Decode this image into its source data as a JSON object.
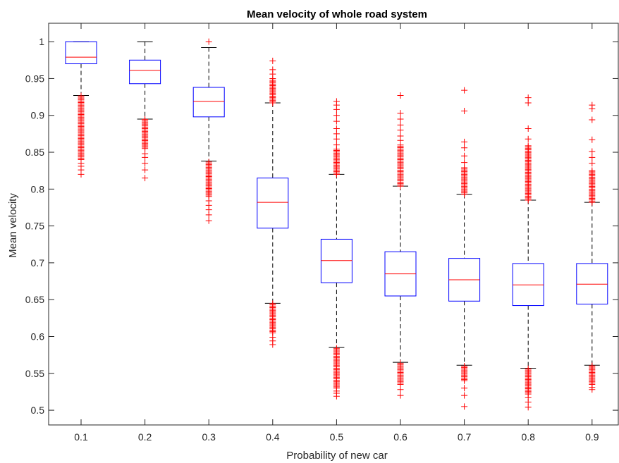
{
  "chart_data": {
    "type": "box",
    "title": "Mean velocity of whole road system",
    "xlabel": "Probability of new car",
    "ylabel": "Mean velocity",
    "categories": [
      "0.1",
      "0.2",
      "0.3",
      "0.4",
      "0.5",
      "0.6",
      "0.7",
      "0.8",
      "0.9"
    ],
    "ylim": [
      0.48,
      1.025
    ],
    "yticks": [
      "0.5",
      "0.55",
      "0.6",
      "0.65",
      "0.7",
      "0.75",
      "0.8",
      "0.85",
      "0.9",
      "0.95",
      "1"
    ],
    "grid": false,
    "boxes": [
      {
        "category": "0.1",
        "whisker_low": 0.927,
        "q1": 0.97,
        "median": 0.979,
        "q3": 1.0,
        "whisker_high": 1.0,
        "outliers": {
          "low_from": 0.84,
          "low_to": 0.927,
          "sparse_low": [
            0.82,
            0.826,
            0.831,
            0.835
          ]
        }
      },
      {
        "category": "0.2",
        "whisker_low": 0.895,
        "q1": 0.943,
        "median": 0.961,
        "q3": 0.975,
        "whisker_high": 1.0,
        "outliers": {
          "low_from": 0.855,
          "low_to": 0.895,
          "sparse_low": [
            0.815,
            0.826,
            0.835,
            0.843,
            0.848
          ]
        }
      },
      {
        "category": "0.3",
        "whisker_low": 0.838,
        "q1": 0.898,
        "median": 0.919,
        "q3": 0.938,
        "whisker_high": 0.992,
        "outliers": {
          "high": [
            1.0
          ],
          "low_from": 0.79,
          "low_to": 0.838,
          "sparse_low": [
            0.757,
            0.765,
            0.772,
            0.778,
            0.784
          ]
        }
      },
      {
        "category": "0.4",
        "whisker_low": 0.645,
        "q1": 0.747,
        "median": 0.782,
        "q3": 0.815,
        "whisker_high": 0.917,
        "outliers": {
          "high_from": 0.917,
          "high_to": 0.948,
          "sparse_high": [
            0.95,
            0.956,
            0.962,
            0.974
          ],
          "low_from": 0.605,
          "low_to": 0.645,
          "sparse_low": [
            0.589,
            0.594,
            0.599
          ]
        }
      },
      {
        "category": "0.5",
        "whisker_low": 0.585,
        "q1": 0.673,
        "median": 0.703,
        "q3": 0.732,
        "whisker_high": 0.82,
        "outliers": {
          "high_from": 0.82,
          "high_to": 0.855,
          "sparse_high": [
            0.86,
            0.868,
            0.875,
            0.882,
            0.892,
            0.9,
            0.908,
            0.914,
            0.919
          ],
          "low_from": 0.53,
          "low_to": 0.585,
          "sparse_low": [
            0.519,
            0.523,
            0.526
          ]
        }
      },
      {
        "category": "0.6",
        "whisker_low": 0.565,
        "q1": 0.655,
        "median": 0.685,
        "q3": 0.715,
        "whisker_high": 0.804,
        "outliers": {
          "high_from": 0.804,
          "high_to": 0.86,
          "sparse_high": [
            0.866,
            0.872,
            0.88,
            0.887,
            0.895,
            0.903,
            0.927
          ],
          "low_from": 0.535,
          "low_to": 0.565,
          "sparse_low": [
            0.52,
            0.528
          ]
        }
      },
      {
        "category": "0.7",
        "whisker_low": 0.561,
        "q1": 0.648,
        "median": 0.677,
        "q3": 0.706,
        "whisker_high": 0.793,
        "outliers": {
          "high_from": 0.793,
          "high_to": 0.83,
          "sparse_high": [
            0.836,
            0.845,
            0.856,
            0.864,
            0.906,
            0.934
          ],
          "low_from": 0.54,
          "low_to": 0.561,
          "sparse_low": [
            0.505,
            0.52,
            0.53
          ]
        }
      },
      {
        "category": "0.8",
        "whisker_low": 0.557,
        "q1": 0.642,
        "median": 0.67,
        "q3": 0.699,
        "whisker_high": 0.785,
        "outliers": {
          "high_from": 0.785,
          "high_to": 0.86,
          "sparse_high": [
            0.868,
            0.882,
            0.917,
            0.924
          ],
          "low_from": 0.522,
          "low_to": 0.557,
          "sparse_low": [
            0.504,
            0.511,
            0.517
          ]
        }
      },
      {
        "category": "0.9",
        "whisker_low": 0.561,
        "q1": 0.644,
        "median": 0.671,
        "q3": 0.699,
        "whisker_high": 0.782,
        "outliers": {
          "high_from": 0.782,
          "high_to": 0.826,
          "sparse_high": [
            0.835,
            0.843,
            0.851,
            0.867,
            0.894,
            0.909,
            0.914
          ],
          "low_from": 0.535,
          "low_to": 0.561,
          "sparse_low": [
            0.528,
            0.531
          ]
        }
      }
    ],
    "colors": {
      "box": "#0000ff",
      "median": "#ff0000",
      "whisker": "#000000",
      "outlier": "#ff0000",
      "axis": "#262626"
    },
    "outlier_marker": "plus"
  }
}
